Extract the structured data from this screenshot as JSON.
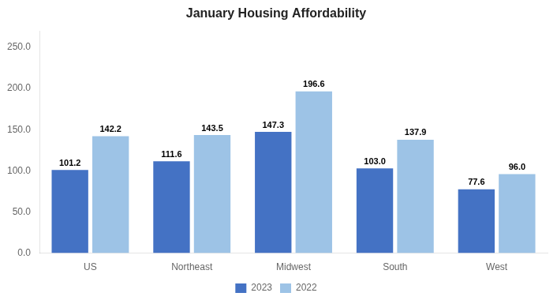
{
  "chart_data": {
    "type": "bar",
    "title": "January Housing Affordability",
    "categories": [
      "US",
      "Northeast",
      "Midwest",
      "South",
      "West"
    ],
    "series": [
      {
        "name": "2023",
        "color": "#4472C4",
        "values": [
          101.2,
          111.6,
          147.3,
          103.0,
          77.6
        ],
        "value_labels": [
          "101.2",
          "111.6",
          "147.3",
          "103.0",
          "77.6"
        ]
      },
      {
        "name": "2022",
        "color": "#9DC3E6",
        "values": [
          142.2,
          143.5,
          196.6,
          137.9,
          96.0
        ],
        "value_labels": [
          "142.2",
          "143.5",
          "196.6",
          "137.9",
          "96.0"
        ]
      }
    ],
    "ylim": [
      0,
      270
    ],
    "yticks": [
      {
        "value": 0,
        "label": "0.0"
      },
      {
        "value": 50,
        "label": "50.0"
      },
      {
        "value": 100,
        "label": "100.0"
      },
      {
        "value": 150,
        "label": "150.0"
      },
      {
        "value": 200,
        "label": "200.0"
      },
      {
        "value": 250,
        "label": "250.0"
      }
    ],
    "grid": false,
    "legend": "bottom",
    "data_labels": true
  }
}
